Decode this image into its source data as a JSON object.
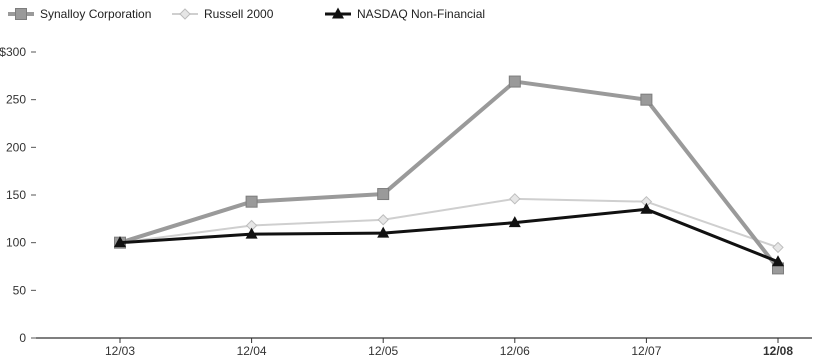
{
  "chart_data": {
    "type": "line",
    "title": "",
    "xlabel": "",
    "ylabel": "",
    "categories": [
      "12/03",
      "12/04",
      "12/05",
      "12/06",
      "12/07",
      "12/08"
    ],
    "y_ticks": [
      "$300",
      "250",
      "200",
      "150",
      "100",
      "50",
      "0"
    ],
    "y_tick_values": [
      300,
      250,
      200,
      150,
      100,
      50,
      0
    ],
    "ylim": [
      0,
      300
    ],
    "grid": false,
    "legend_position": "top-left",
    "bold_last_category": true,
    "series": [
      {
        "name": "Synalloy Corporation",
        "values": [
          100,
          143,
          151,
          269,
          250,
          73
        ],
        "color": "#9a9a9a",
        "marker": "square"
      },
      {
        "name": "Russell 2000",
        "values": [
          100,
          118,
          124,
          146,
          143,
          95
        ],
        "color": "#cfcfcf",
        "marker": "diamond"
      },
      {
        "name": "NASDAQ Non-Financial",
        "values": [
          100,
          109,
          110,
          121,
          135,
          80
        ],
        "color": "#111111",
        "marker": "triangle"
      }
    ]
  }
}
